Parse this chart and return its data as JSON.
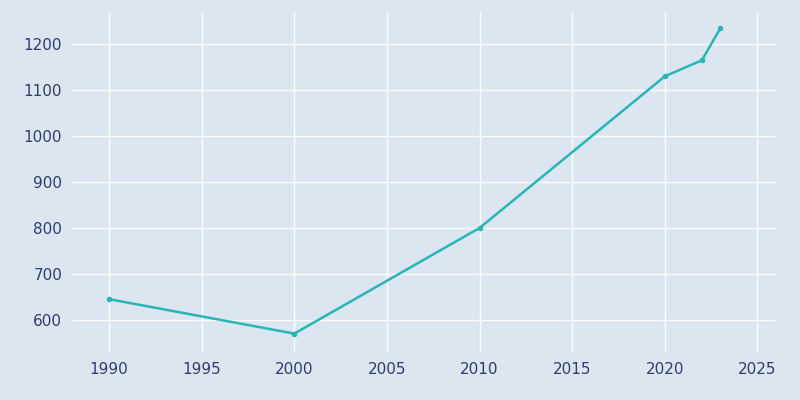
{
  "years": [
    1990,
    2000,
    2010,
    2020,
    2022,
    2023
  ],
  "population": [
    645,
    570,
    800,
    1130,
    1165,
    1235
  ],
  "line_color": "#2ab5b5",
  "background_color": "#dce6f0",
  "plot_bg_color": "#dce6f0",
  "grid_color": "#c5d5e8",
  "tick_label_color": "#2c3e6b",
  "xlim": [
    1988,
    2026
  ],
  "ylim": [
    530,
    1270
  ],
  "xticks": [
    1990,
    1995,
    2000,
    2005,
    2010,
    2015,
    2020,
    2025
  ],
  "yticks": [
    600,
    700,
    800,
    900,
    1000,
    1100,
    1200
  ],
  "linewidth": 1.8,
  "markersize": 4,
  "figsize": [
    8.0,
    4.0
  ],
  "dpi": 100
}
